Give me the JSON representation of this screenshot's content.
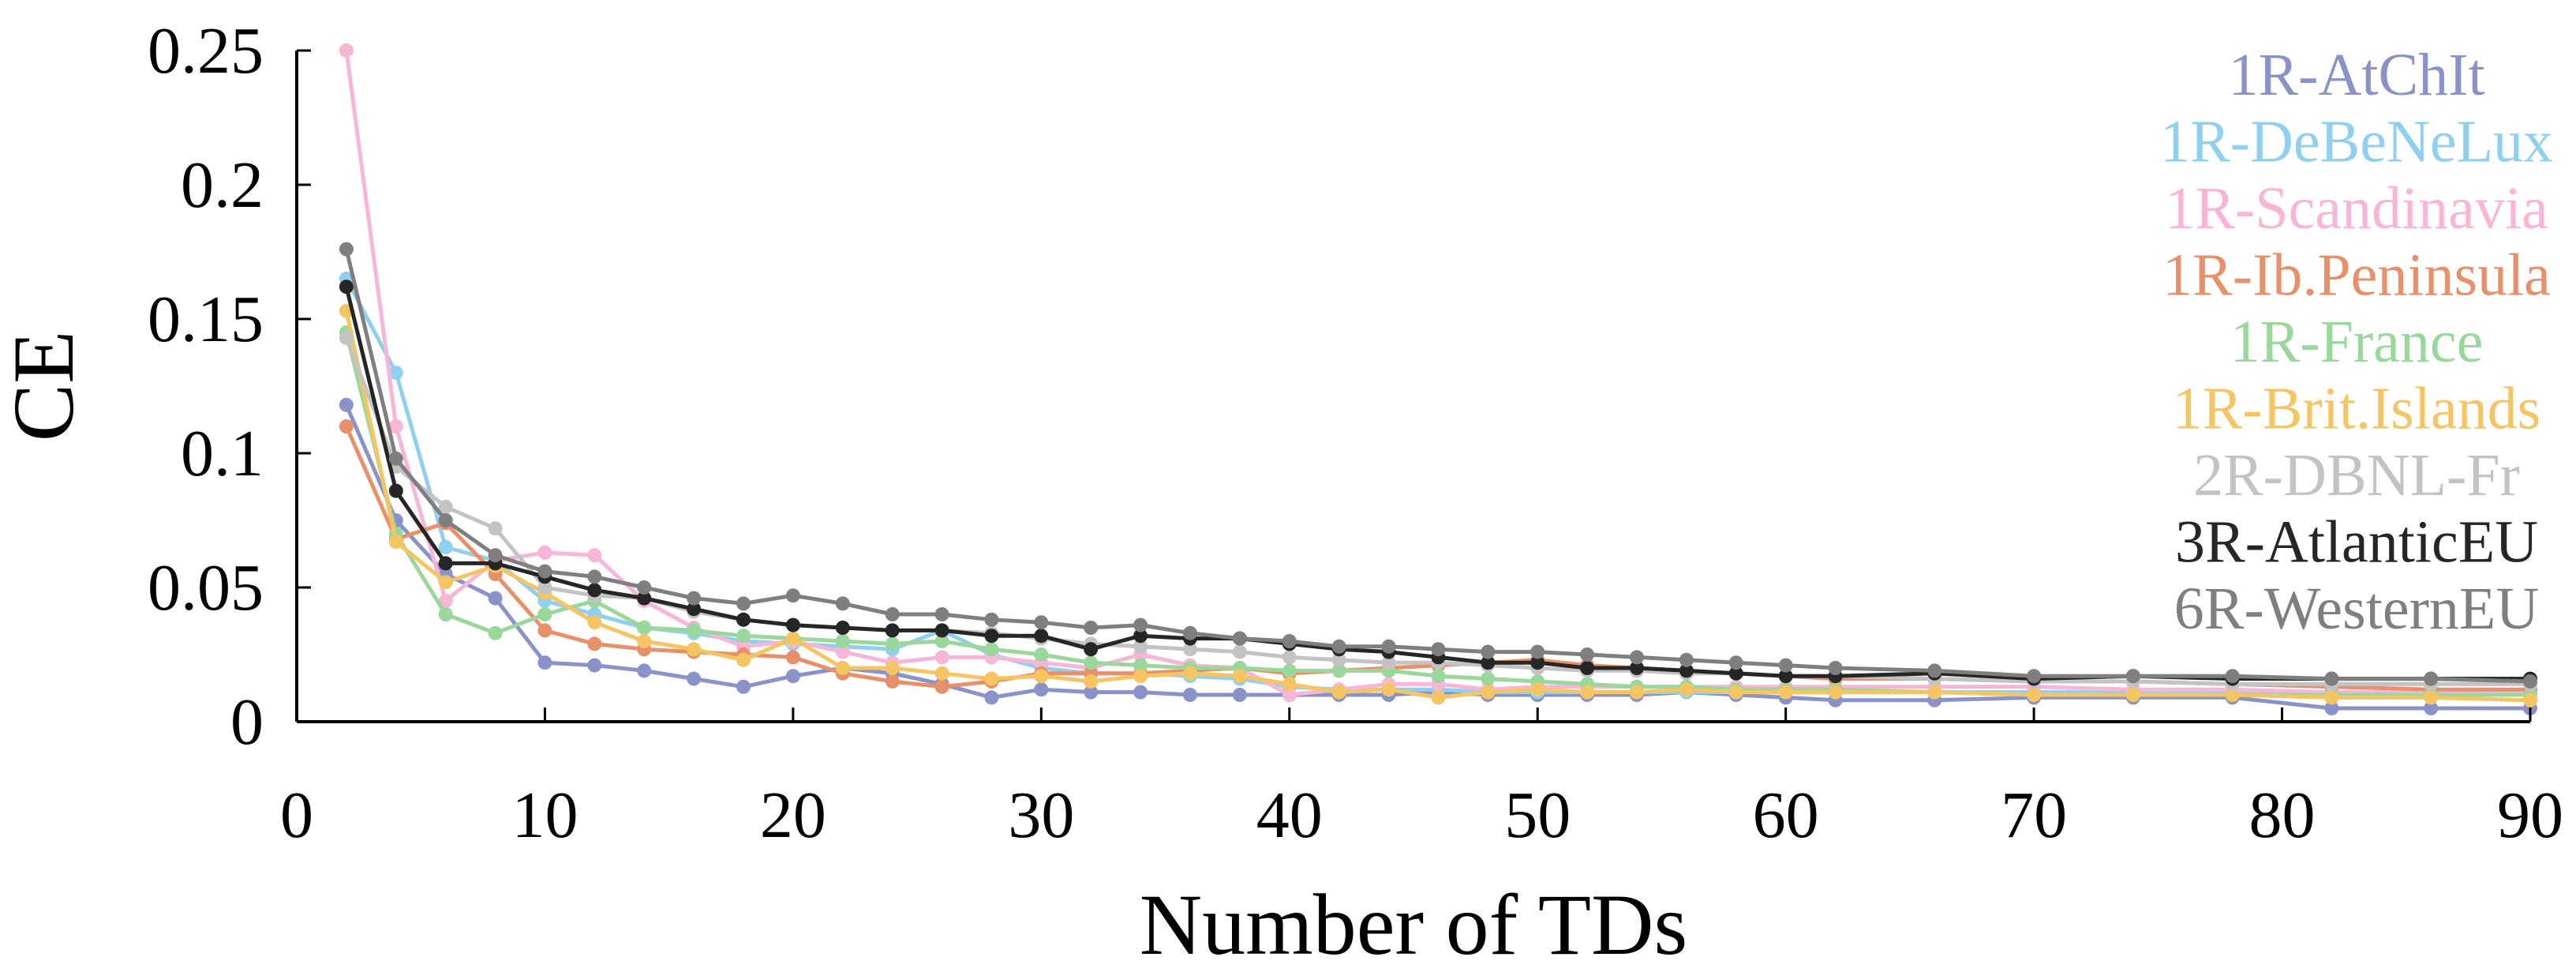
{
  "chart_data": {
    "type": "line",
    "title": "",
    "xlabel": "Number of TDs",
    "ylabel": "CE",
    "xlim": [
      0,
      90
    ],
    "ylim": [
      0,
      0.25
    ],
    "x_ticks": [
      0,
      10,
      20,
      30,
      40,
      50,
      60,
      70,
      80,
      90
    ],
    "x_tick_labels": [
      "0",
      "10",
      "20",
      "30",
      "40",
      "50",
      "60",
      "70",
      "80",
      "90"
    ],
    "y_ticks": [
      0,
      0.05,
      0.1,
      0.15,
      0.2,
      0.25
    ],
    "y_tick_labels": [
      "0",
      "0.05",
      "0.1",
      "0.15",
      "0.2",
      "0.25"
    ],
    "legend_position": "top-right",
    "grid": false,
    "series": [
      {
        "name": "1R-AtChIt",
        "color": "#8a93c9",
        "x": [
          2,
          4,
          6,
          8,
          10,
          12,
          14,
          16,
          18,
          20,
          22,
          24,
          26,
          28,
          30,
          32,
          34,
          36,
          38,
          40,
          42,
          44,
          46,
          48,
          50,
          52,
          54,
          56,
          58,
          60,
          62,
          66,
          70,
          74,
          78,
          82,
          86,
          90
        ],
        "y": [
          0.118,
          0.075,
          0.055,
          0.046,
          0.022,
          0.021,
          0.019,
          0.016,
          0.013,
          0.017,
          0.02,
          0.018,
          0.014,
          0.009,
          0.012,
          0.011,
          0.011,
          0.01,
          0.01,
          0.01,
          0.01,
          0.01,
          0.011,
          0.01,
          0.01,
          0.01,
          0.01,
          0.011,
          0.01,
          0.009,
          0.008,
          0.008,
          0.009,
          0.009,
          0.009,
          0.005,
          0.005,
          0.005
        ]
      },
      {
        "name": "1R-DeBeNeLux",
        "color": "#8fd0ee",
        "x": [
          2,
          4,
          6,
          8,
          10,
          12,
          14,
          16,
          18,
          20,
          22,
          24,
          26,
          28,
          30,
          32,
          34,
          36,
          38,
          40,
          42,
          44,
          46,
          48,
          50,
          52,
          54,
          56,
          58,
          60,
          62,
          66,
          70,
          74,
          78,
          82,
          86,
          90
        ],
        "y": [
          0.165,
          0.13,
          0.065,
          0.06,
          0.045,
          0.04,
          0.035,
          0.033,
          0.03,
          0.029,
          0.028,
          0.027,
          0.034,
          0.025,
          0.02,
          0.018,
          0.018,
          0.017,
          0.016,
          0.013,
          0.012,
          0.012,
          0.012,
          0.011,
          0.011,
          0.011,
          0.011,
          0.011,
          0.011,
          0.011,
          0.011,
          0.011,
          0.011,
          0.011,
          0.011,
          0.01,
          0.01,
          0.01
        ]
      },
      {
        "name": "1R-Scandinavia",
        "color": "#f7b6d8",
        "x": [
          2,
          4,
          6,
          8,
          10,
          12,
          14,
          16,
          18,
          20,
          22,
          24,
          26,
          28,
          30,
          32,
          34,
          36,
          38,
          40,
          42,
          44,
          46,
          48,
          50,
          52,
          54,
          56,
          58,
          60,
          62,
          66,
          70,
          74,
          78,
          82,
          86,
          90
        ],
        "y": [
          0.25,
          0.11,
          0.045,
          0.06,
          0.063,
          0.062,
          0.045,
          0.035,
          0.028,
          0.03,
          0.026,
          0.022,
          0.024,
          0.024,
          0.022,
          0.02,
          0.025,
          0.021,
          0.02,
          0.01,
          0.012,
          0.014,
          0.014,
          0.012,
          0.013,
          0.013,
          0.013,
          0.013,
          0.013,
          0.013,
          0.013,
          0.013,
          0.013,
          0.012,
          0.012,
          0.011,
          0.011,
          0.011
        ]
      },
      {
        "name": "1R-Ib.Peninsula",
        "color": "#e8906a",
        "x": [
          2,
          4,
          6,
          8,
          10,
          12,
          14,
          16,
          18,
          20,
          22,
          24,
          26,
          28,
          30,
          32,
          34,
          36,
          38,
          40,
          42,
          44,
          46,
          48,
          50,
          52,
          54,
          56,
          58,
          60,
          62,
          66,
          70,
          74,
          78,
          82,
          86,
          90
        ],
        "y": [
          0.11,
          0.068,
          0.074,
          0.055,
          0.034,
          0.029,
          0.027,
          0.026,
          0.025,
          0.024,
          0.018,
          0.015,
          0.013,
          0.015,
          0.018,
          0.018,
          0.018,
          0.019,
          0.02,
          0.018,
          0.019,
          0.02,
          0.021,
          0.022,
          0.023,
          0.021,
          0.02,
          0.019,
          0.018,
          0.017,
          0.016,
          0.016,
          0.015,
          0.015,
          0.014,
          0.013,
          0.012,
          0.012
        ]
      },
      {
        "name": "1R-France",
        "color": "#99d89a",
        "x": [
          2,
          4,
          6,
          8,
          10,
          12,
          14,
          16,
          18,
          20,
          22,
          24,
          26,
          28,
          30,
          32,
          34,
          36,
          38,
          40,
          42,
          44,
          46,
          48,
          50,
          52,
          54,
          56,
          58,
          60,
          62,
          66,
          70,
          74,
          78,
          82,
          86,
          90
        ],
        "y": [
          0.145,
          0.07,
          0.04,
          0.033,
          0.04,
          0.045,
          0.035,
          0.034,
          0.032,
          0.031,
          0.03,
          0.029,
          0.03,
          0.027,
          0.025,
          0.022,
          0.021,
          0.02,
          0.02,
          0.019,
          0.019,
          0.019,
          0.017,
          0.016,
          0.015,
          0.014,
          0.013,
          0.013,
          0.012,
          0.012,
          0.012,
          0.011,
          0.01,
          0.01,
          0.01,
          0.01,
          0.01,
          0.01
        ]
      },
      {
        "name": "1R-Brit.Islands",
        "color": "#f5c463",
        "x": [
          2,
          4,
          6,
          8,
          10,
          12,
          14,
          16,
          18,
          20,
          22,
          24,
          26,
          28,
          30,
          32,
          34,
          36,
          38,
          40,
          42,
          44,
          46,
          48,
          50,
          52,
          54,
          56,
          58,
          60,
          62,
          66,
          70,
          74,
          78,
          82,
          86,
          90
        ],
        "y": [
          0.153,
          0.067,
          0.052,
          0.058,
          0.048,
          0.037,
          0.03,
          0.027,
          0.023,
          0.031,
          0.02,
          0.02,
          0.018,
          0.016,
          0.017,
          0.015,
          0.017,
          0.018,
          0.017,
          0.014,
          0.011,
          0.012,
          0.009,
          0.011,
          0.012,
          0.011,
          0.011,
          0.012,
          0.011,
          0.011,
          0.011,
          0.011,
          0.01,
          0.01,
          0.01,
          0.009,
          0.009,
          0.008
        ]
      },
      {
        "name": "2R-DBNL-Fr",
        "color": "#c3c3c3",
        "x": [
          2,
          4,
          6,
          8,
          10,
          12,
          14,
          16,
          18,
          20,
          22,
          24,
          26,
          28,
          30,
          32,
          34,
          36,
          38,
          40,
          42,
          44,
          46,
          48,
          50,
          52,
          54,
          56,
          58,
          60,
          62,
          66,
          70,
          74,
          78,
          82,
          86,
          90
        ],
        "y": [
          0.143,
          0.095,
          0.08,
          0.072,
          0.05,
          0.047,
          0.046,
          0.041,
          0.038,
          0.036,
          0.035,
          0.034,
          0.034,
          0.033,
          0.031,
          0.029,
          0.028,
          0.027,
          0.026,
          0.024,
          0.023,
          0.022,
          0.022,
          0.021,
          0.02,
          0.019,
          0.019,
          0.018,
          0.018,
          0.017,
          0.017,
          0.016,
          0.015,
          0.015,
          0.014,
          0.014,
          0.014,
          0.014
        ]
      },
      {
        "name": "3R-AtlanticEU",
        "color": "#262626",
        "x": [
          2,
          4,
          6,
          8,
          10,
          12,
          14,
          16,
          18,
          20,
          22,
          24,
          26,
          28,
          30,
          32,
          34,
          36,
          38,
          40,
          42,
          44,
          46,
          48,
          50,
          52,
          54,
          56,
          58,
          60,
          62,
          66,
          70,
          74,
          78,
          82,
          86,
          90
        ],
        "y": [
          0.162,
          0.086,
          0.059,
          0.059,
          0.054,
          0.049,
          0.046,
          0.042,
          0.038,
          0.036,
          0.035,
          0.034,
          0.034,
          0.032,
          0.032,
          0.027,
          0.032,
          0.031,
          0.031,
          0.029,
          0.027,
          0.026,
          0.024,
          0.022,
          0.022,
          0.02,
          0.02,
          0.019,
          0.018,
          0.017,
          0.017,
          0.018,
          0.016,
          0.017,
          0.016,
          0.016,
          0.016,
          0.016
        ]
      },
      {
        "name": "6R-WesternEU",
        "color": "#7f7f7f",
        "x": [
          2,
          4,
          6,
          8,
          10,
          12,
          14,
          16,
          18,
          20,
          22,
          24,
          26,
          28,
          30,
          32,
          34,
          36,
          38,
          40,
          42,
          44,
          46,
          48,
          50,
          52,
          54,
          56,
          58,
          60,
          62,
          66,
          70,
          74,
          78,
          82,
          86,
          90
        ],
        "y": [
          0.176,
          0.098,
          0.075,
          0.062,
          0.056,
          0.054,
          0.05,
          0.046,
          0.044,
          0.047,
          0.044,
          0.04,
          0.04,
          0.038,
          0.037,
          0.035,
          0.036,
          0.033,
          0.031,
          0.03,
          0.028,
          0.028,
          0.027,
          0.026,
          0.026,
          0.025,
          0.024,
          0.023,
          0.022,
          0.021,
          0.02,
          0.019,
          0.017,
          0.017,
          0.017,
          0.016,
          0.016,
          0.015
        ]
      }
    ]
  }
}
